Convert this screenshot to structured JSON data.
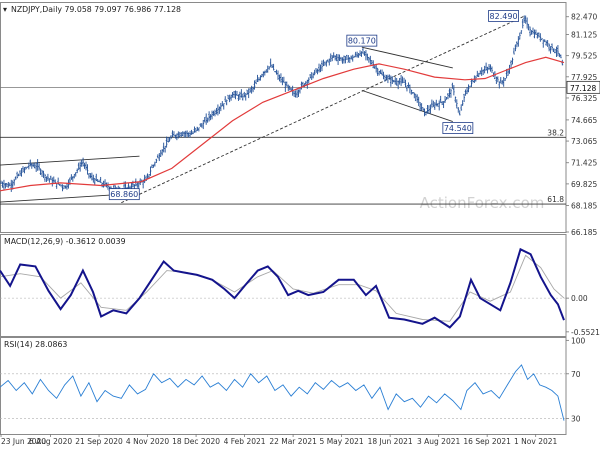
{
  "chart_data": [
    {
      "panel": "price",
      "type": "candlestick",
      "title": "NZDJPY,Daily",
      "ohlc": [
        "79.058",
        "79.097",
        "76.986",
        "77.128"
      ],
      "price_label": "77.128",
      "ylim": [
        66.185,
        83.585
      ],
      "y_ticks": [
        "82.470",
        "81.125",
        "79.525",
        "77.925",
        "76.325",
        "74.665",
        "73.065",
        "71.425",
        "69.825",
        "68.185",
        "66.185"
      ],
      "x_ticks": [
        "23 Jun 2020",
        "6 Aug 2020",
        "21 Sep 2020",
        "4 Nov 2020",
        "18 Dec 2020",
        "4 Feb 2021",
        "22 Mar 2021",
        "5 May 2021",
        "18 Jun 2021",
        "3 Aug 2021",
        "16 Sep 2021",
        "1 Nov 2021"
      ],
      "close_path": [
        [
          0,
          69.9
        ],
        [
          10,
          69.7
        ],
        [
          20,
          70.6
        ],
        [
          30,
          71.3
        ],
        [
          38,
          71.1
        ],
        [
          45,
          70.4
        ],
        [
          55,
          69.9
        ],
        [
          65,
          69.6
        ],
        [
          75,
          70.7
        ],
        [
          82,
          71.5
        ],
        [
          90,
          70.3
        ],
        [
          100,
          69.9
        ],
        [
          110,
          69.5
        ],
        [
          120,
          69.4
        ],
        [
          130,
          69.6
        ],
        [
          138,
          69.9
        ],
        [
          145,
          70.1
        ],
        [
          150,
          71.0
        ],
        [
          160,
          72.3
        ],
        [
          170,
          73.4
        ],
        [
          180,
          73.7
        ],
        [
          190,
          73.6
        ],
        [
          200,
          74.3
        ],
        [
          210,
          75.1
        ],
        [
          220,
          75.8
        ],
        [
          230,
          76.6
        ],
        [
          240,
          76.4
        ],
        [
          250,
          77.0
        ],
        [
          260,
          78.2
        ],
        [
          268,
          78.8
        ],
        [
          275,
          78.0
        ],
        [
          285,
          77.1
        ],
        [
          292,
          76.6
        ],
        [
          300,
          77.3
        ],
        [
          310,
          78.1
        ],
        [
          320,
          78.8
        ],
        [
          330,
          79.5
        ],
        [
          340,
          79.2
        ],
        [
          350,
          79.4
        ],
        [
          358,
          79.8
        ],
        [
          365,
          79.3
        ],
        [
          372,
          78.6
        ],
        [
          380,
          77.9
        ],
        [
          390,
          77.6
        ],
        [
          400,
          77.5
        ],
        [
          410,
          76.6
        ],
        [
          420,
          75.2
        ],
        [
          430,
          75.8
        ],
        [
          440,
          76.1
        ],
        [
          448,
          77.1
        ],
        [
          455,
          75.0
        ],
        [
          460,
          76.6
        ],
        [
          468,
          77.6
        ],
        [
          475,
          78.3
        ],
        [
          485,
          78.6
        ],
        [
          495,
          77.4
        ],
        [
          500,
          77.8
        ],
        [
          506,
          78.9
        ],
        [
          510,
          80.1
        ],
        [
          515,
          81.2
        ],
        [
          519,
          82.3
        ],
        [
          525,
          81.4
        ],
        [
          535,
          80.9
        ],
        [
          545,
          80.2
        ],
        [
          552,
          79.8
        ],
        [
          556,
          79.2
        ],
        [
          558,
          77.1
        ]
      ],
      "ma_path": [
        [
          0,
          69.3
        ],
        [
          30,
          69.7
        ],
        [
          60,
          69.9
        ],
        [
          100,
          69.7
        ],
        [
          140,
          70.0
        ],
        [
          170,
          71.0
        ],
        [
          200,
          72.8
        ],
        [
          230,
          74.6
        ],
        [
          260,
          76.0
        ],
        [
          290,
          76.9
        ],
        [
          320,
          77.8
        ],
        [
          350,
          78.5
        ],
        [
          375,
          78.9
        ],
        [
          400,
          78.5
        ],
        [
          430,
          77.9
        ],
        [
          460,
          77.7
        ],
        [
          480,
          77.8
        ],
        [
          500,
          78.4
        ],
        [
          520,
          79.0
        ],
        [
          540,
          79.4
        ],
        [
          558,
          79.0
        ]
      ],
      "annotations": [
        {
          "text": "82.490",
          "x": 518,
          "y": 82.49
        },
        {
          "text": "80.170",
          "x": 358,
          "y": 80.17
        },
        {
          "text": "74.540",
          "x": 453,
          "y": 74.54
        },
        {
          "text": "68.860",
          "x": 120,
          "y": 68.86
        }
      ],
      "fib_levels": [
        {
          "label": "38.2",
          "value": 73.35
        },
        {
          "label": "61.8",
          "value": 68.3
        }
      ],
      "h_line": 77.128,
      "trendline_rising": [
        [
          120,
          68.4
        ],
        [
          518,
          82.49
        ]
      ],
      "channel_up": {
        "upper": [
          [
            0,
            71.25
          ],
          [
            138,
            71.92
          ]
        ],
        "lower": [
          [
            0,
            68.45
          ],
          [
            138,
            69.12
          ]
        ]
      },
      "channel_down": {
        "upper": [
          [
            358,
            80.17
          ],
          [
            448,
            78.6
          ]
        ],
        "lower": [
          [
            358,
            76.9
          ],
          [
            448,
            74.54
          ]
        ]
      },
      "watermark": "ActionForex.com"
    },
    {
      "panel": "macd",
      "type": "line",
      "title": "MACD(12,26,9) -0.3612 0.0039",
      "ylim": [
        -0.62,
        1.05
      ],
      "y_ticks": [
        "0.00",
        "-0.5521"
      ],
      "macd": [
        [
          0,
          0.45
        ],
        [
          10,
          0.2
        ],
        [
          20,
          0.55
        ],
        [
          35,
          0.52
        ],
        [
          48,
          0.12
        ],
        [
          60,
          -0.18
        ],
        [
          70,
          0.05
        ],
        [
          82,
          0.45
        ],
        [
          92,
          0.1
        ],
        [
          100,
          -0.3
        ],
        [
          112,
          -0.2
        ],
        [
          125,
          -0.25
        ],
        [
          138,
          0.0
        ],
        [
          150,
          0.3
        ],
        [
          162,
          0.6
        ],
        [
          172,
          0.45
        ],
        [
          182,
          0.42
        ],
        [
          195,
          0.38
        ],
        [
          210,
          0.3
        ],
        [
          222,
          0.15
        ],
        [
          232,
          0.0
        ],
        [
          242,
          0.2
        ],
        [
          255,
          0.45
        ],
        [
          265,
          0.52
        ],
        [
          275,
          0.35
        ],
        [
          285,
          0.05
        ],
        [
          295,
          0.12
        ],
        [
          305,
          0.05
        ],
        [
          320,
          0.1
        ],
        [
          335,
          0.3
        ],
        [
          350,
          0.3
        ],
        [
          362,
          0.05
        ],
        [
          372,
          0.2
        ],
        [
          385,
          -0.32
        ],
        [
          400,
          -0.35
        ],
        [
          418,
          -0.42
        ],
        [
          430,
          -0.32
        ],
        [
          445,
          -0.48
        ],
        [
          455,
          -0.3
        ],
        [
          466,
          0.3
        ],
        [
          475,
          0.0
        ],
        [
          485,
          -0.1
        ],
        [
          495,
          -0.2
        ],
        [
          505,
          0.25
        ],
        [
          515,
          0.8
        ],
        [
          525,
          0.72
        ],
        [
          535,
          0.35
        ],
        [
          545,
          0.05
        ],
        [
          552,
          -0.1
        ],
        [
          558,
          -0.36
        ]
      ],
      "signal": [
        [
          0,
          0.35
        ],
        [
          20,
          0.4
        ],
        [
          40,
          0.35
        ],
        [
          60,
          0.0
        ],
        [
          80,
          0.25
        ],
        [
          100,
          -0.15
        ],
        [
          125,
          -0.2
        ],
        [
          145,
          0.1
        ],
        [
          165,
          0.45
        ],
        [
          185,
          0.42
        ],
        [
          210,
          0.3
        ],
        [
          232,
          0.1
        ],
        [
          255,
          0.35
        ],
        [
          270,
          0.45
        ],
        [
          290,
          0.15
        ],
        [
          310,
          0.08
        ],
        [
          335,
          0.22
        ],
        [
          355,
          0.22
        ],
        [
          372,
          0.12
        ],
        [
          392,
          -0.25
        ],
        [
          418,
          -0.35
        ],
        [
          445,
          -0.38
        ],
        [
          465,
          0.1
        ],
        [
          485,
          -0.05
        ],
        [
          505,
          0.1
        ],
        [
          520,
          0.7
        ],
        [
          535,
          0.5
        ],
        [
          548,
          0.15
        ],
        [
          558,
          0.0
        ]
      ]
    },
    {
      "panel": "rsi",
      "type": "line",
      "title": "RSI(14) 28.0863",
      "ylim": [
        16,
        103
      ],
      "y_ticks": [
        "100",
        "70",
        "30"
      ],
      "levels": [
        70,
        30
      ],
      "rsi": [
        [
          0,
          58
        ],
        [
          8,
          64
        ],
        [
          16,
          55
        ],
        [
          24,
          62
        ],
        [
          32,
          52
        ],
        [
          40,
          65
        ],
        [
          48,
          55
        ],
        [
          56,
          48
        ],
        [
          64,
          60
        ],
        [
          72,
          68
        ],
        [
          80,
          50
        ],
        [
          88,
          62
        ],
        [
          96,
          45
        ],
        [
          104,
          55
        ],
        [
          112,
          50
        ],
        [
          120,
          48
        ],
        [
          128,
          60
        ],
        [
          136,
          52
        ],
        [
          144,
          56
        ],
        [
          152,
          70
        ],
        [
          160,
          62
        ],
        [
          168,
          66
        ],
        [
          176,
          58
        ],
        [
          184,
          65
        ],
        [
          192,
          60
        ],
        [
          200,
          68
        ],
        [
          208,
          58
        ],
        [
          216,
          62
        ],
        [
          224,
          55
        ],
        [
          232,
          65
        ],
        [
          240,
          58
        ],
        [
          248,
          70
        ],
        [
          256,
          62
        ],
        [
          264,
          68
        ],
        [
          272,
          55
        ],
        [
          280,
          60
        ],
        [
          288,
          50
        ],
        [
          296,
          58
        ],
        [
          304,
          52
        ],
        [
          312,
          62
        ],
        [
          320,
          56
        ],
        [
          328,
          64
        ],
        [
          336,
          58
        ],
        [
          344,
          62
        ],
        [
          352,
          55
        ],
        [
          360,
          60
        ],
        [
          368,
          48
        ],
        [
          376,
          58
        ],
        [
          384,
          38
        ],
        [
          392,
          52
        ],
        [
          400,
          45
        ],
        [
          408,
          48
        ],
        [
          416,
          40
        ],
        [
          424,
          50
        ],
        [
          432,
          44
        ],
        [
          440,
          52
        ],
        [
          448,
          46
        ],
        [
          456,
          38
        ],
        [
          462,
          55
        ],
        [
          470,
          62
        ],
        [
          478,
          52
        ],
        [
          486,
          55
        ],
        [
          494,
          48
        ],
        [
          502,
          60
        ],
        [
          510,
          72
        ],
        [
          516,
          78
        ],
        [
          522,
          65
        ],
        [
          528,
          70
        ],
        [
          534,
          60
        ],
        [
          540,
          58
        ],
        [
          546,
          55
        ],
        [
          552,
          50
        ],
        [
          558,
          28
        ]
      ]
    }
  ]
}
